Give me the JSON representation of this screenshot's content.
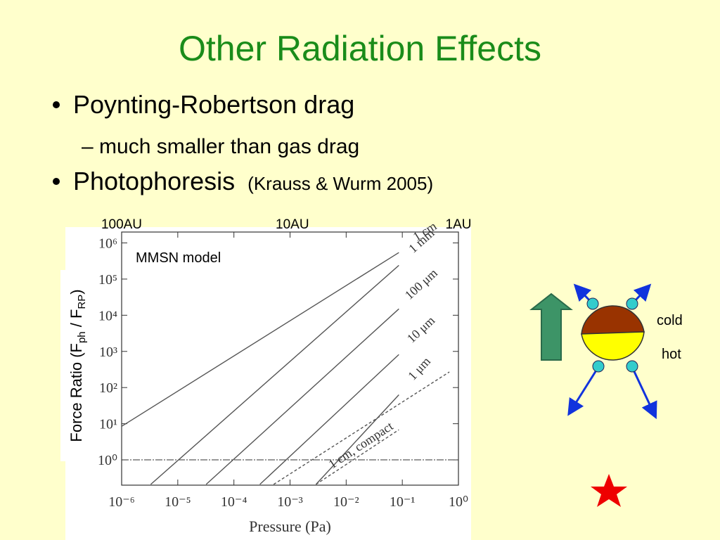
{
  "slide": {
    "title": "Other Radiation Effects",
    "bullet1": "Poynting-Robertson drag",
    "sub1": "– much smaller than gas drag",
    "bullet2": "Photophoresis",
    "bullet2_ref": "(Krauss & Wurm 2005)",
    "diagram": {
      "cold": "cold",
      "hot": "hot"
    }
  },
  "chart_data": {
    "type": "line",
    "xlabel": "Pressure (Pa)",
    "ylabel": [
      "Force Ratio (F",
      "ph",
      " / F",
      "RP",
      ")"
    ],
    "annotation": "MMSN model",
    "log_x": true,
    "log_y": true,
    "xlim": [
      1e-06,
      1
    ],
    "ylim": [
      0.2,
      2000000
    ],
    "xticks": [
      {
        "value": 1e-06,
        "label": "10⁻⁶"
      },
      {
        "value": 1e-05,
        "label": "10⁻⁵"
      },
      {
        "value": 0.0001,
        "label": "10⁻⁴"
      },
      {
        "value": 0.001,
        "label": "10⁻³"
      },
      {
        "value": 0.01,
        "label": "10⁻²"
      },
      {
        "value": 0.1,
        "label": "10⁻¹"
      },
      {
        "value": 1,
        "label": "10⁰"
      }
    ],
    "yticks": [
      {
        "value": 1,
        "label": "10⁰"
      },
      {
        "value": 10,
        "label": "10¹"
      },
      {
        "value": 100,
        "label": "10²"
      },
      {
        "value": 1000,
        "label": "10³"
      },
      {
        "value": 10000,
        "label": "10⁴"
      },
      {
        "value": 100000,
        "label": "10⁵"
      },
      {
        "value": 1000000,
        "label": "10⁶"
      }
    ],
    "top_labels": [
      {
        "text": "100AU",
        "x": 1e-06
      },
      {
        "text": "10AU",
        "x": 0.0011
      },
      {
        "text": "1AU",
        "x": 1
      }
    ],
    "hline": 1,
    "series": [
      {
        "name": "1 cm",
        "color": "#555555",
        "x": [
          1e-06,
          0.087
        ],
        "values": [
          8.5,
          540000
        ]
      },
      {
        "name": "1 mm",
        "color": "#555555",
        "x": [
          3.3e-06,
          0.087
        ],
        "values": [
          0.21,
          240000
        ]
      },
      {
        "name": "100 μm",
        "color": "#555555",
        "x": [
          3.2e-05,
          0.087
        ],
        "values": [
          0.21,
          15000
        ]
      },
      {
        "name": "10 μm",
        "color": "#555555",
        "x": [
          0.00029,
          0.087
        ],
        "values": [
          0.21,
          820
        ]
      },
      {
        "name": "1 μm",
        "color": "#555555",
        "x": [
          0.0029,
          0.087
        ],
        "values": [
          0.21,
          63
        ]
      },
      {
        "color": "#555555",
        "dash": true,
        "x": [
          0.00051,
          0.69
        ],
        "values": [
          0.21,
          270
        ]
      },
      {
        "name": "1 cm, compact",
        "color": "#555555",
        "dash": true,
        "x": [
          0.0029,
          0.087
        ],
        "values": [
          0.21,
          6.8
        ]
      }
    ]
  }
}
